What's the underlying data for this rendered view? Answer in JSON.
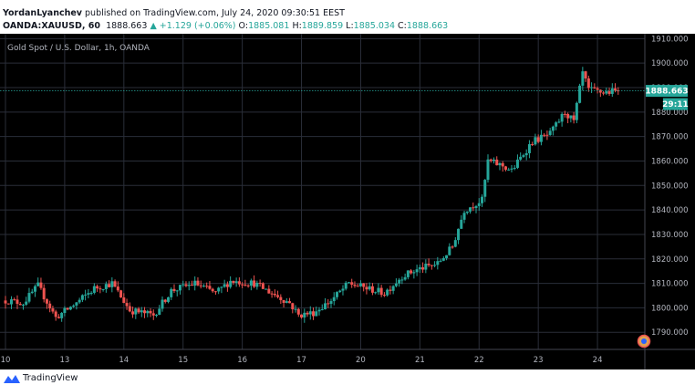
{
  "header": {
    "author": "YordanLyanchev",
    "published_text": "published on TradingView.com, July 24, 2020 09:30:51 EEST",
    "symbol": "OANDA:XAUUSD, 60",
    "last": "1888.663",
    "change": "+1.129 (+0.06%)",
    "o_label": "O:",
    "o_value": "1885.081",
    "h_label": "H:",
    "h_value": "1889.859",
    "l_label": "L:",
    "l_value": "1885.034",
    "c_label": "C:",
    "c_value": "1888.663"
  },
  "footer": {
    "brand": "TradingView"
  },
  "colors": {
    "background": "#000000",
    "grid": "#2a2e39",
    "up": "#26a69a",
    "down": "#ef5350",
    "axis_text": "#b2b5be"
  },
  "chart_data": {
    "type": "candlestick",
    "title": "Gold Spot / U.S. Dollar, 1h, OANDA",
    "ylim": [
      1783,
      1912
    ],
    "yticks": [
      1790,
      1800,
      1810,
      1820,
      1830,
      1840,
      1850,
      1860,
      1870,
      1880,
      1890,
      1900,
      1910
    ],
    "ytick_labels": [
      "1790.000",
      "1800.000",
      "1810.000",
      "1820.000",
      "1830.000",
      "1840.000",
      "1850.000",
      "1860.000",
      "1870.000",
      "1880.000",
      "1890.000",
      "1900.000",
      "1910.000"
    ],
    "x_range": [
      0,
      10.8
    ],
    "xticks": [
      0,
      1,
      2,
      3,
      4,
      5,
      6,
      7,
      8,
      9,
      10
    ],
    "xtick_labels": [
      "10",
      "13",
      "14",
      "15",
      "16",
      "17",
      "20",
      "21",
      "22",
      "23",
      "24"
    ],
    "last_price": 1888.663,
    "last_price_label": "1888.663",
    "countdown_label": "29:11",
    "anchor_path": [
      [
        0.0,
        1803
      ],
      [
        0.3,
        1802
      ],
      [
        0.55,
        1809
      ],
      [
        0.85,
        1796
      ],
      [
        1.2,
        1802
      ],
      [
        1.5,
        1808
      ],
      [
        1.8,
        1810
      ],
      [
        2.1,
        1799
      ],
      [
        2.5,
        1797
      ],
      [
        2.8,
        1807
      ],
      [
        3.2,
        1810
      ],
      [
        3.55,
        1806
      ],
      [
        3.8,
        1811
      ],
      [
        4.2,
        1810
      ],
      [
        4.5,
        1806
      ],
      [
        4.8,
        1802
      ],
      [
        4.95,
        1797
      ],
      [
        5.2,
        1798
      ],
      [
        5.5,
        1803
      ],
      [
        5.8,
        1810
      ],
      [
        6.1,
        1808
      ],
      [
        6.4,
        1806
      ],
      [
        6.7,
        1813
      ],
      [
        7.0,
        1816
      ],
      [
        7.3,
        1818
      ],
      [
        7.55,
        1825
      ],
      [
        7.75,
        1840
      ],
      [
        8.05,
        1844
      ],
      [
        8.15,
        1860
      ],
      [
        8.4,
        1858
      ],
      [
        8.55,
        1856
      ],
      [
        8.75,
        1863
      ],
      [
        8.9,
        1868
      ],
      [
        9.2,
        1871
      ],
      [
        9.45,
        1880
      ],
      [
        9.6,
        1876
      ],
      [
        9.75,
        1896
      ],
      [
        9.85,
        1889
      ],
      [
        10.1,
        1888
      ],
      [
        10.35,
        1888.663
      ]
    ]
  }
}
